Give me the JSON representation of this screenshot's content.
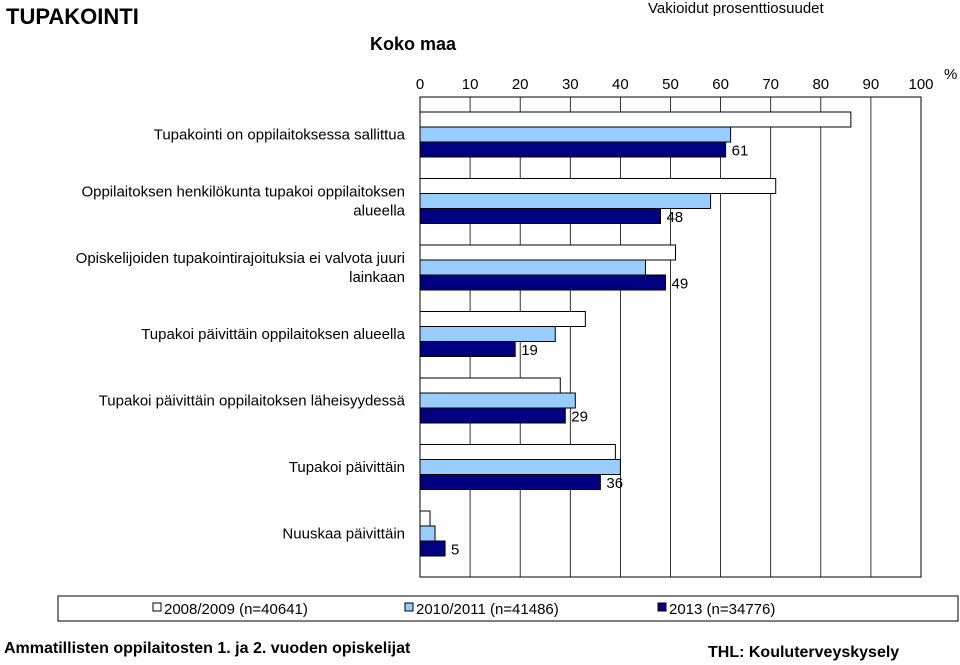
{
  "page": {
    "title": "TUPAKOINTI",
    "subtitle": "Vakioidut prosenttiosuudet",
    "group_label": "Koko maa",
    "footer_left": "Ammatillisten oppilaitosten 1. ja 2. vuoden opiskelijat",
    "footer_right": "THL: Kouluterveyskysely"
  },
  "chart_data": {
    "type": "bar",
    "orientation": "horizontal",
    "unit_label": "%",
    "xlim": [
      0,
      100
    ],
    "x_ticks": [
      0,
      10,
      20,
      30,
      40,
      50,
      60,
      70,
      80,
      90,
      100
    ],
    "x_axis_position": "top",
    "grid": "vertical",
    "legend_position": "bottom",
    "categories": [
      [
        "Tupakointi on oppilaitoksessa sallittua"
      ],
      [
        "Oppilaitoksen henkilökunta tupakoi oppilaitoksen",
        "alueella"
      ],
      [
        "Opiskelijoiden tupakointirajoituksia ei valvota juuri",
        "lainkaan"
      ],
      [
        "Tupakoi päivittäin oppilaitoksen alueella"
      ],
      [
        "Tupakoi päivittäin oppilaitoksen läheisyydessä"
      ],
      [
        "Tupakoi päivittäin"
      ],
      [
        "Nuuskaa päivittäin"
      ]
    ],
    "series": [
      {
        "name": "2008/2009 (n=40641)",
        "color": "#ffffff",
        "values": [
          86,
          71,
          51,
          33,
          28,
          39,
          2
        ]
      },
      {
        "name": "2010/2011 (n=41486)",
        "color": "#99ccff",
        "values": [
          62,
          58,
          45,
          27,
          31,
          40,
          3
        ]
      },
      {
        "name": "2013 (n=34776)",
        "color": "#000080",
        "values": [
          61,
          48,
          49,
          19,
          29,
          36,
          5
        ],
        "data_labels": [
          "61",
          "48",
          "49",
          "19",
          "29",
          "36",
          "5"
        ]
      }
    ]
  }
}
